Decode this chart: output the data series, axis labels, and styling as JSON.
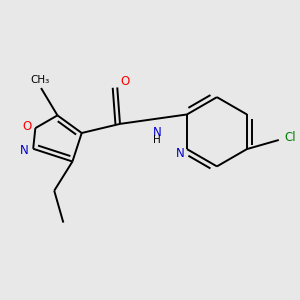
{
  "bg_color": "#e8e8e8",
  "atom_colors": {
    "C": "#000000",
    "N": "#0000cd",
    "O": "#ff0000",
    "Cl": "#008000",
    "H": "#000000"
  },
  "bond_color": "#000000",
  "lw": 1.4
}
